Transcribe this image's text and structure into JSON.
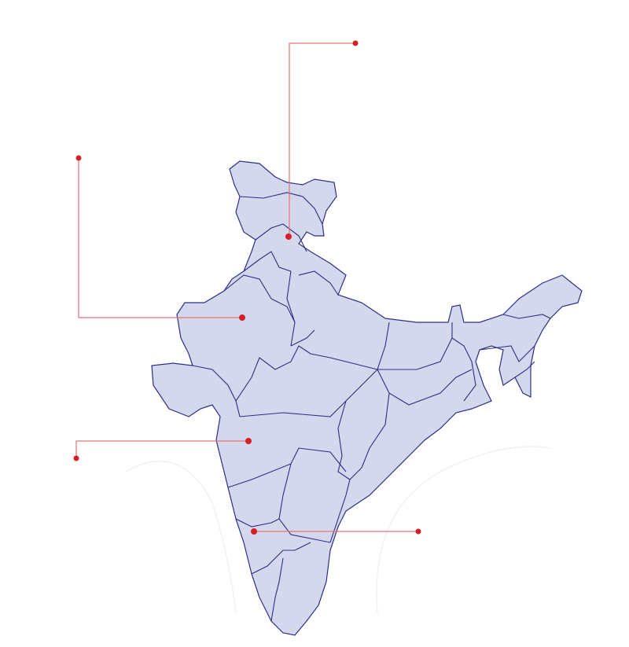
{
  "colors": {
    "land_fill": "#d5d7ec",
    "border_stroke": "#2b3087",
    "marker": "#d62027",
    "leader_line": "#e07676",
    "background": "#ffffff"
  },
  "map": {
    "country_shape": "india-outline",
    "markers": [
      "marker-north",
      "marker-west",
      "marker-central-west",
      "marker-south"
    ]
  }
}
